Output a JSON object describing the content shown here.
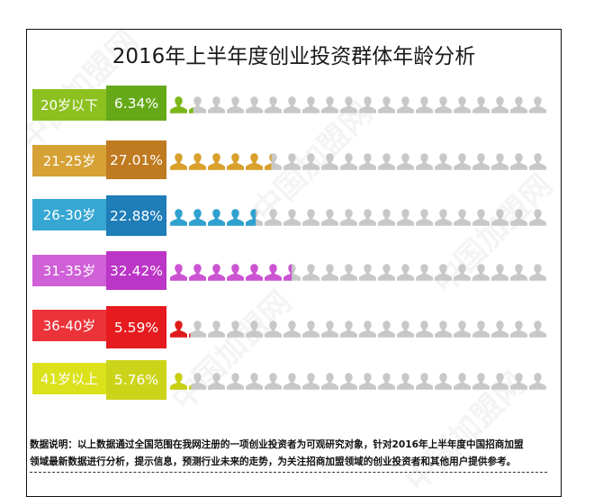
{
  "chart_data": {
    "type": "bar",
    "title": "2016年上半年度创业投资群体年龄分析",
    "subtitle": "",
    "xlabel": "",
    "ylabel": "",
    "unit": "%",
    "icon_unit": "each person icon = 5%, 20 icons per row",
    "categories": [
      "20岁以下",
      "21-25岁",
      "26-30岁",
      "31-35岁",
      "36-40岁",
      "41岁以上"
    ],
    "values": [
      6.34,
      27.01,
      22.88,
      32.42,
      5.59,
      5.76
    ],
    "value_labels": [
      "6.34%",
      "27.01%",
      "22.88%",
      "32.42%",
      "5.59%",
      "5.76%"
    ],
    "ylim": [
      0,
      100
    ],
    "grid": false,
    "legend": "none"
  },
  "title": "2016年上半年度创业投资群体年龄分析",
  "rows": [
    {
      "label": "20岁以下",
      "value": "6.34%",
      "pct": 6.34,
      "label_color": "#8cc11f",
      "value_color": "#65a919",
      "icon_color": "#7cb71a"
    },
    {
      "label": "21-25岁",
      "value": "27.01%",
      "pct": 27.01,
      "label_color": "#d6a236",
      "value_color": "#c07a20",
      "icon_color": "#d9a02c"
    },
    {
      "label": "26-30岁",
      "value": "22.88%",
      "pct": 22.88,
      "label_color": "#36a7d3",
      "value_color": "#1f7db8",
      "icon_color": "#2fa1cf"
    },
    {
      "label": "31-35岁",
      "value": "32.42%",
      "pct": 32.42,
      "label_color": "#cf60d7",
      "value_color": "#bb35c6",
      "icon_color": "#cc54d3"
    },
    {
      "label": "36-40岁",
      "value": "5.59%",
      "pct": 5.59,
      "label_color": "#ec3339",
      "value_color": "#e51b1f",
      "icon_color": "#e01b1b"
    },
    {
      "label": "41岁以上",
      "value": "5.76%",
      "pct": 5.76,
      "label_color": "#dbe11a",
      "value_color": "#ccd41a",
      "icon_color": "#c7cf10"
    }
  ],
  "icon_inactive_color": "#c8c8c8",
  "note": {
    "line1": "数据说明：以上数据通过全国范围在我网注册的一项创业投资者为可观研究对象，针对2016年上半年度中国招商加盟",
    "line2": "领域最新数据进行分析，提示信息，预测行业未来的走势，为关注招商加盟领域的创业投资者和其他用户提供参考。"
  },
  "watermark": "中国加盟网"
}
